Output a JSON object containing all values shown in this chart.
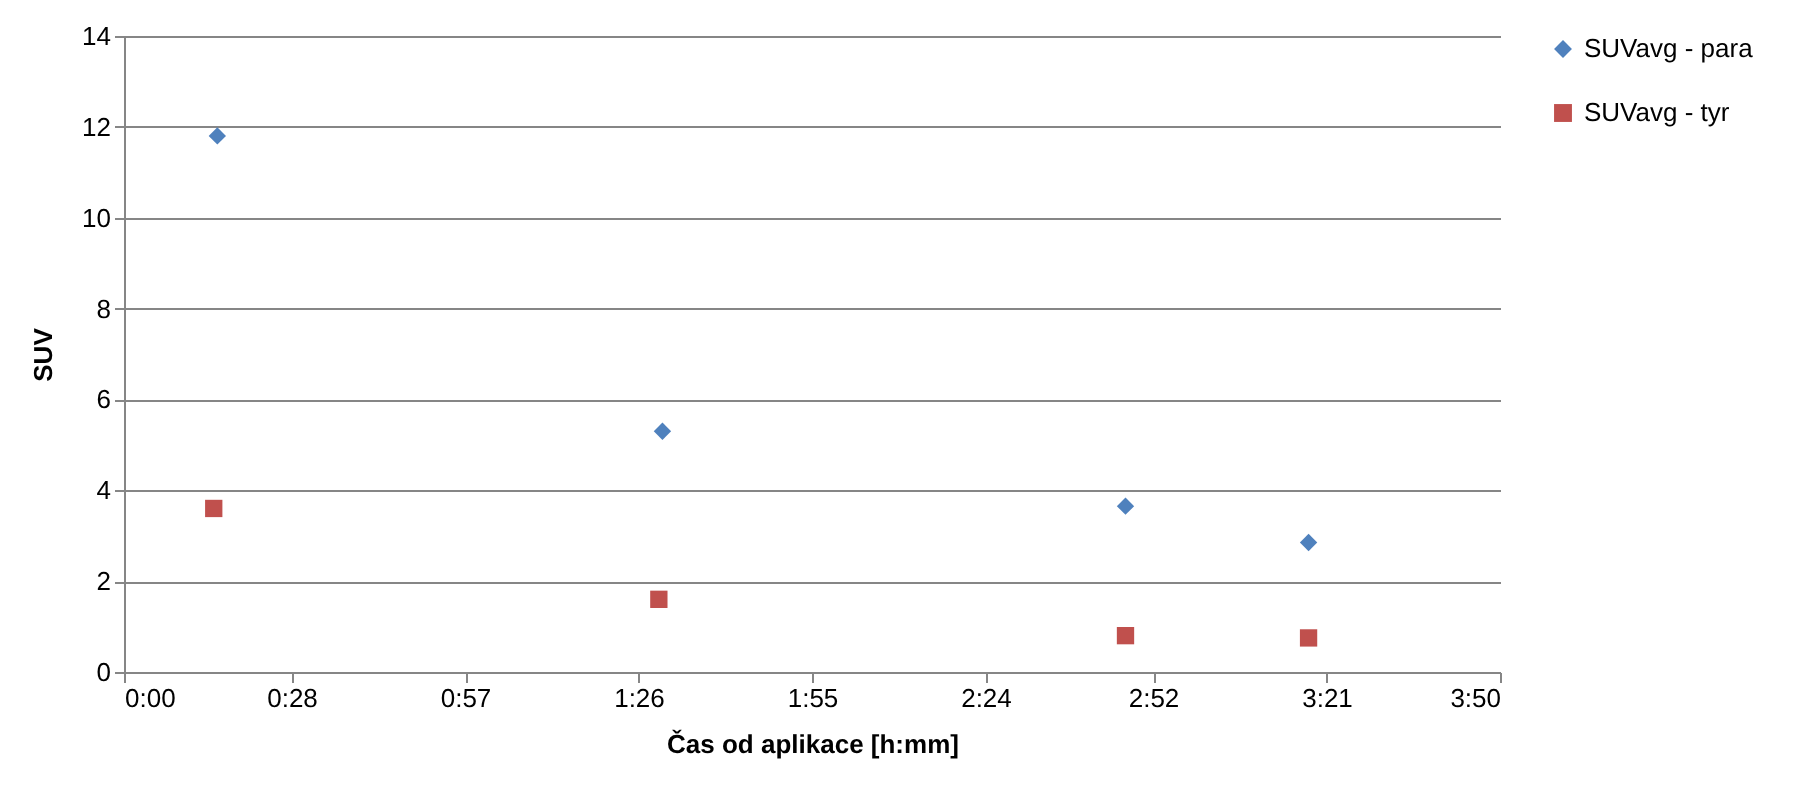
{
  "chart_data": {
    "type": "scatter",
    "xlabel": "Čas od aplikace  [h:mm]",
    "ylabel": "SUV",
    "xlim": [
      0,
      3.8333
    ],
    "xticks": [
      {
        "value": 0,
        "label": "0:00"
      },
      {
        "value": 0.4667,
        "label": "0:28"
      },
      {
        "value": 0.95,
        "label": "0:57"
      },
      {
        "value": 1.4333,
        "label": "1:26"
      },
      {
        "value": 1.9167,
        "label": "1:55"
      },
      {
        "value": 2.4,
        "label": "2:24"
      },
      {
        "value": 2.8667,
        "label": "2:52"
      },
      {
        "value": 3.35,
        "label": "3:21"
      },
      {
        "value": 3.8333,
        "label": "3:50"
      }
    ],
    "ylim": [
      0,
      14
    ],
    "yticks": [
      0,
      2,
      4,
      6,
      8,
      10,
      12,
      14
    ],
    "grid": "y",
    "legend": "right",
    "series": [
      {
        "name": "SUVavg - para",
        "color": "#4f81bd",
        "marker": "diamond",
        "x": [
          0.26,
          1.5,
          2.79,
          3.3
        ],
        "values": [
          11.8,
          5.3,
          3.65,
          2.85
        ]
      },
      {
        "name": "SUVavg - tyr",
        "color": "#c0504d",
        "marker": "square",
        "x": [
          0.25,
          1.49,
          2.79,
          3.3
        ],
        "values": [
          3.6,
          1.6,
          0.8,
          0.75
        ]
      }
    ]
  }
}
